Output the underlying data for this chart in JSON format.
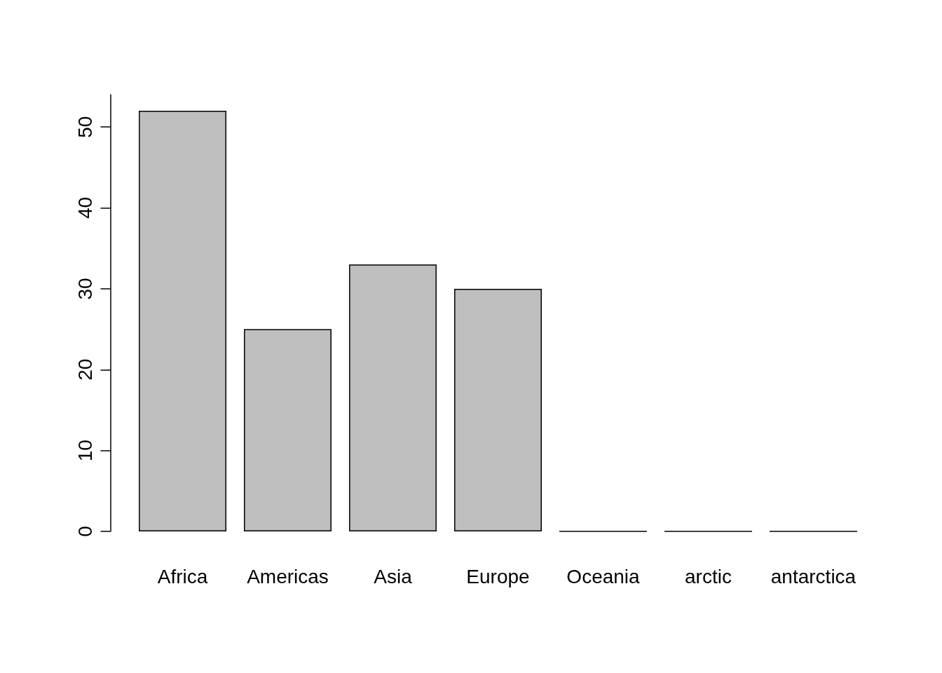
{
  "chart_data": {
    "type": "bar",
    "categories": [
      "Africa",
      "Americas",
      "Asia",
      "Europe",
      "Oceania",
      "arctic",
      "antarctica"
    ],
    "values": [
      52,
      25,
      33,
      30,
      0,
      0,
      0
    ],
    "color": "#bebebe",
    "ylim": [
      0,
      54
    ],
    "yticks": [
      0,
      10,
      20,
      30,
      40,
      50
    ],
    "grid": false
  }
}
